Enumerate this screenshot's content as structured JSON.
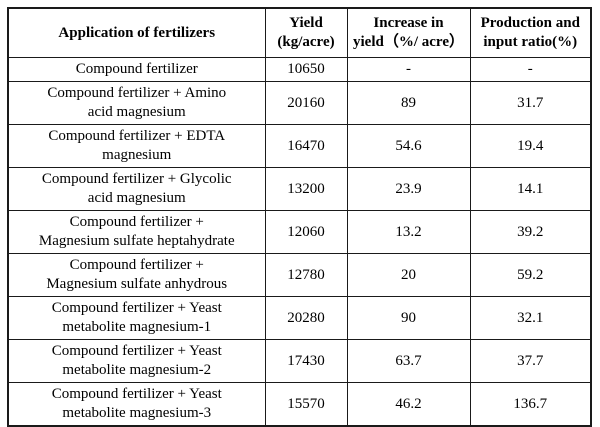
{
  "chart_data": {
    "type": "table",
    "title": "",
    "columns": [
      "Application of fertilizers",
      "Yield (kg/acre)",
      "Increase in yield（%/ acre）",
      "Production and input ratio(%)"
    ],
    "rows": [
      [
        "Compound fertilizer",
        10650,
        "-",
        "-"
      ],
      [
        "Compound fertilizer + Amino acid magnesium",
        20160,
        89,
        31.7
      ],
      [
        "Compound fertilizer + EDTA magnesium",
        16470,
        54.6,
        19.4
      ],
      [
        "Compound fertilizer + Glycolic acid magnesium",
        13200,
        23.9,
        14.1
      ],
      [
        "Compound fertilizer + Magnesium sulfate heptahydrate",
        12060,
        13.2,
        39.2
      ],
      [
        "Compound fertilizer + Magnesium sulfate anhydrous",
        12780,
        20,
        59.2
      ],
      [
        "Compound fertilizer + Yeast metabolite magnesium-1",
        20280,
        90,
        32.1
      ],
      [
        "Compound fertilizer + Yeast metabolite magnesium-2",
        17430,
        63.7,
        37.7
      ],
      [
        "Compound fertilizer + Yeast metabolite magnesium-3",
        15570,
        46.2,
        136.7
      ]
    ],
    "layout": {
      "grid": "all-borders",
      "header_bold": true,
      "text_color": "#000000",
      "border_color": "#1a1a1a",
      "background": "#ffffff"
    }
  },
  "table": {
    "headers": {
      "application": "Application of fertilizers",
      "yield": "Yield\n(kg/acre)",
      "increase": "Increase in\nyield（%/ acre）",
      "ratio": "Production and\ninput ratio(%)"
    },
    "rows": [
      {
        "application": "Compound fertilizer",
        "yield": "10650",
        "increase": "-",
        "ratio": "-"
      },
      {
        "application": "Compound fertilizer + Amino\nacid magnesium",
        "yield": "20160",
        "increase": "89",
        "ratio": "31.7"
      },
      {
        "application": "Compound fertilizer + EDTA\nmagnesium",
        "yield": "16470",
        "increase": "54.6",
        "ratio": "19.4"
      },
      {
        "application": "Compound fertilizer + Glycolic\nacid magnesium",
        "yield": "13200",
        "increase": "23.9",
        "ratio": "14.1"
      },
      {
        "application": "Compound fertilizer +\nMagnesium sulfate heptahydrate",
        "yield": "12060",
        "increase": "13.2",
        "ratio": "39.2"
      },
      {
        "application": "Compound fertilizer +\nMagnesium sulfate anhydrous",
        "yield": "12780",
        "increase": "20",
        "ratio": "59.2"
      },
      {
        "application": "Compound fertilizer + Yeast\nmetabolite magnesium-1",
        "yield": "20280",
        "increase": "90",
        "ratio": "32.1"
      },
      {
        "application": "Compound fertilizer + Yeast\nmetabolite magnesium-2",
        "yield": "17430",
        "increase": "63.7",
        "ratio": "37.7"
      },
      {
        "application": "Compound fertilizer + Yeast\nmetabolite magnesium-3",
        "yield": "15570",
        "increase": "46.2",
        "ratio": "136.7"
      }
    ]
  }
}
